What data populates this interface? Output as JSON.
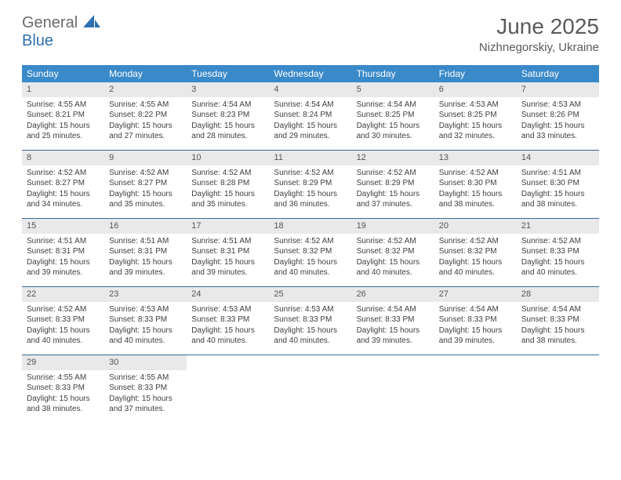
{
  "brand": {
    "part1": "General",
    "part2": "Blue"
  },
  "title": "June 2025",
  "location": "Nizhnegorskiy, Ukraine",
  "colors": {
    "header_bg": "#3a89c9",
    "header_text": "#ffffff",
    "rule": "#3a6a9a",
    "daynum_bg": "#e9e9e9",
    "text": "#404040",
    "brand_grey": "#6a6a6a",
    "brand_blue": "#2f6fb0"
  },
  "day_names": [
    "Sunday",
    "Monday",
    "Tuesday",
    "Wednesday",
    "Thursday",
    "Friday",
    "Saturday"
  ],
  "days": [
    {
      "n": 1,
      "sunrise": "4:55 AM",
      "sunset": "8:21 PM",
      "daylight": "15 hours and 25 minutes."
    },
    {
      "n": 2,
      "sunrise": "4:55 AM",
      "sunset": "8:22 PM",
      "daylight": "15 hours and 27 minutes."
    },
    {
      "n": 3,
      "sunrise": "4:54 AM",
      "sunset": "8:23 PM",
      "daylight": "15 hours and 28 minutes."
    },
    {
      "n": 4,
      "sunrise": "4:54 AM",
      "sunset": "8:24 PM",
      "daylight": "15 hours and 29 minutes."
    },
    {
      "n": 5,
      "sunrise": "4:54 AM",
      "sunset": "8:25 PM",
      "daylight": "15 hours and 30 minutes."
    },
    {
      "n": 6,
      "sunrise": "4:53 AM",
      "sunset": "8:25 PM",
      "daylight": "15 hours and 32 minutes."
    },
    {
      "n": 7,
      "sunrise": "4:53 AM",
      "sunset": "8:26 PM",
      "daylight": "15 hours and 33 minutes."
    },
    {
      "n": 8,
      "sunrise": "4:52 AM",
      "sunset": "8:27 PM",
      "daylight": "15 hours and 34 minutes."
    },
    {
      "n": 9,
      "sunrise": "4:52 AM",
      "sunset": "8:27 PM",
      "daylight": "15 hours and 35 minutes."
    },
    {
      "n": 10,
      "sunrise": "4:52 AM",
      "sunset": "8:28 PM",
      "daylight": "15 hours and 35 minutes."
    },
    {
      "n": 11,
      "sunrise": "4:52 AM",
      "sunset": "8:29 PM",
      "daylight": "15 hours and 36 minutes."
    },
    {
      "n": 12,
      "sunrise": "4:52 AM",
      "sunset": "8:29 PM",
      "daylight": "15 hours and 37 minutes."
    },
    {
      "n": 13,
      "sunrise": "4:52 AM",
      "sunset": "8:30 PM",
      "daylight": "15 hours and 38 minutes."
    },
    {
      "n": 14,
      "sunrise": "4:51 AM",
      "sunset": "8:30 PM",
      "daylight": "15 hours and 38 minutes."
    },
    {
      "n": 15,
      "sunrise": "4:51 AM",
      "sunset": "8:31 PM",
      "daylight": "15 hours and 39 minutes."
    },
    {
      "n": 16,
      "sunrise": "4:51 AM",
      "sunset": "8:31 PM",
      "daylight": "15 hours and 39 minutes."
    },
    {
      "n": 17,
      "sunrise": "4:51 AM",
      "sunset": "8:31 PM",
      "daylight": "15 hours and 39 minutes."
    },
    {
      "n": 18,
      "sunrise": "4:52 AM",
      "sunset": "8:32 PM",
      "daylight": "15 hours and 40 minutes."
    },
    {
      "n": 19,
      "sunrise": "4:52 AM",
      "sunset": "8:32 PM",
      "daylight": "15 hours and 40 minutes."
    },
    {
      "n": 20,
      "sunrise": "4:52 AM",
      "sunset": "8:32 PM",
      "daylight": "15 hours and 40 minutes."
    },
    {
      "n": 21,
      "sunrise": "4:52 AM",
      "sunset": "8:33 PM",
      "daylight": "15 hours and 40 minutes."
    },
    {
      "n": 22,
      "sunrise": "4:52 AM",
      "sunset": "8:33 PM",
      "daylight": "15 hours and 40 minutes."
    },
    {
      "n": 23,
      "sunrise": "4:53 AM",
      "sunset": "8:33 PM",
      "daylight": "15 hours and 40 minutes."
    },
    {
      "n": 24,
      "sunrise": "4:53 AM",
      "sunset": "8:33 PM",
      "daylight": "15 hours and 40 minutes."
    },
    {
      "n": 25,
      "sunrise": "4:53 AM",
      "sunset": "8:33 PM",
      "daylight": "15 hours and 40 minutes."
    },
    {
      "n": 26,
      "sunrise": "4:54 AM",
      "sunset": "8:33 PM",
      "daylight": "15 hours and 39 minutes."
    },
    {
      "n": 27,
      "sunrise": "4:54 AM",
      "sunset": "8:33 PM",
      "daylight": "15 hours and 39 minutes."
    },
    {
      "n": 28,
      "sunrise": "4:54 AM",
      "sunset": "8:33 PM",
      "daylight": "15 hours and 38 minutes."
    },
    {
      "n": 29,
      "sunrise": "4:55 AM",
      "sunset": "8:33 PM",
      "daylight": "15 hours and 38 minutes."
    },
    {
      "n": 30,
      "sunrise": "4:55 AM",
      "sunset": "8:33 PM",
      "daylight": "15 hours and 37 minutes."
    }
  ],
  "labels": {
    "sunrise": "Sunrise:",
    "sunset": "Sunset:",
    "daylight": "Daylight:"
  },
  "layout": {
    "first_weekday_index": 0,
    "total_cells": 35
  }
}
